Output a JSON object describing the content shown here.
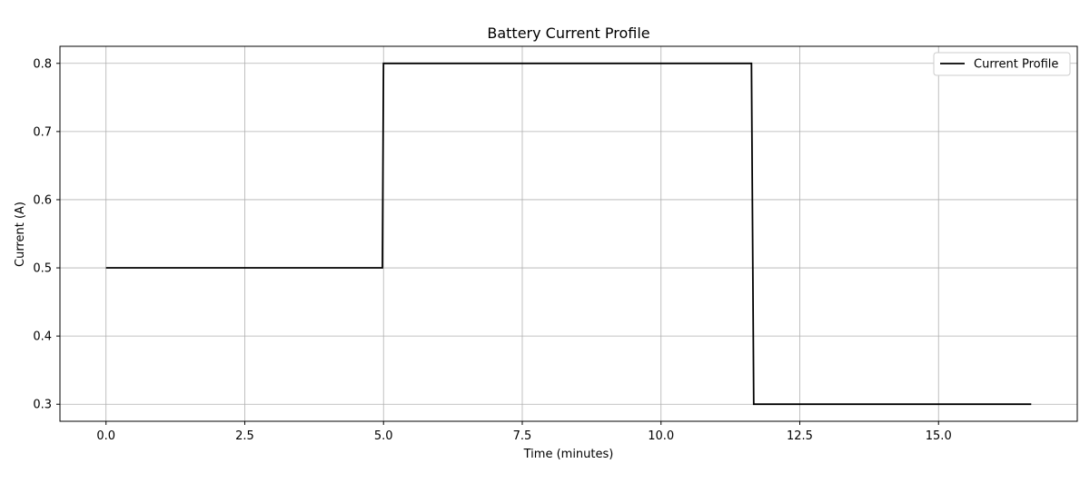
{
  "chart_data": {
    "type": "line",
    "title": "Battery Current Profile",
    "xlabel": "Time (minutes)",
    "ylabel": "Current (A)",
    "xlim": [
      -0.83,
      17.5
    ],
    "ylim": [
      0.275,
      0.825
    ],
    "x_ticks": [
      0.0,
      2.5,
      5.0,
      7.5,
      10.0,
      12.5,
      15.0
    ],
    "x_tick_labels": [
      "0.0",
      "2.5",
      "5.0",
      "7.5",
      "10.0",
      "12.5",
      "15.0"
    ],
    "y_ticks": [
      0.3,
      0.4,
      0.5,
      0.6,
      0.7,
      0.8
    ],
    "y_tick_labels": [
      "0.3",
      "0.4",
      "0.5",
      "0.6",
      "0.7",
      "0.8"
    ],
    "grid": true,
    "legend_position": "top-right",
    "series": [
      {
        "name": "Current Profile",
        "color": "#000000",
        "x": [
          0.0,
          4.98,
          5.0,
          11.63,
          11.67,
          16.67
        ],
        "y": [
          0.5,
          0.5,
          0.8,
          0.8,
          0.3,
          0.3
        ]
      }
    ]
  }
}
